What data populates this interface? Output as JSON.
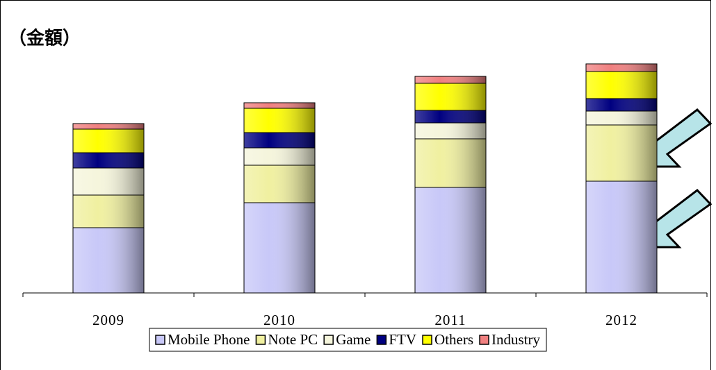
{
  "chart_data": {
    "type": "stacked_bar",
    "title": "（金額）",
    "categories": [
      "2009",
      "2010",
      "2011",
      "2012"
    ],
    "ylim": [
      0,
      340
    ],
    "series": [
      {
        "name": "Mobile Phone",
        "color": "#c8c8f8",
        "values": [
          94,
          130,
          152,
          161
        ]
      },
      {
        "name": "Note PC",
        "color": "#f0f0a0",
        "values": [
          47,
          54,
          70,
          81
        ]
      },
      {
        "name": "Game",
        "color": "#f5f5dc",
        "values": [
          39,
          25,
          23,
          20
        ]
      },
      {
        "name": "FTV",
        "color": "#000080",
        "values": [
          22,
          22,
          18,
          18
        ]
      },
      {
        "name": "Others",
        "color": "#ffff00",
        "values": [
          34,
          35,
          39,
          39
        ]
      },
      {
        "name": "Industry",
        "color": "#f08080",
        "values": [
          8,
          8,
          10,
          11
        ]
      }
    ],
    "legend": "bottom"
  }
}
